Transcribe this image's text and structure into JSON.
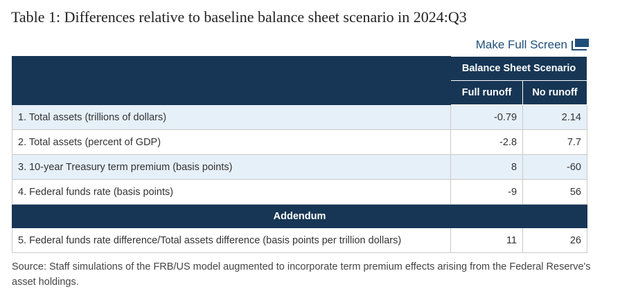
{
  "title": "Table 1: Differences relative to baseline balance sheet scenario in 2024:Q3",
  "fullscreen_label": "Make Full Screen",
  "table": {
    "group_header": "Balance Sheet Scenario",
    "col_headers": [
      "Full runoff",
      "No runoff"
    ],
    "rows": [
      {
        "label": "1. Total assets (trillions of dollars)",
        "full": "-0.79",
        "no": "2.14"
      },
      {
        "label": "2. Total assets (percent of GDP)",
        "full": "-2.8",
        "no": "7.7"
      },
      {
        "label": "3. 10-year Treasury term premium (basis points)",
        "full": "8",
        "no": "-60"
      },
      {
        "label": "4. Federal funds rate (basis points)",
        "full": "-9",
        "no": "56"
      }
    ],
    "addendum_label": "Addendum",
    "addendum_row": {
      "label": "5. Federal funds rate difference/Total assets difference (basis points per trillion dollars)",
      "full": "11",
      "no": "26"
    }
  },
  "source": "Source: Staff simulations of the FRB/US model augmented to incorporate term premium effects arising from the Federal Reserve's asset holdings.",
  "colors": {
    "header_bg": "#173655",
    "row_shade": "#e6f0f9",
    "link": "#1f4e79"
  },
  "icons": {
    "fullscreen": "fullscreen-icon"
  }
}
